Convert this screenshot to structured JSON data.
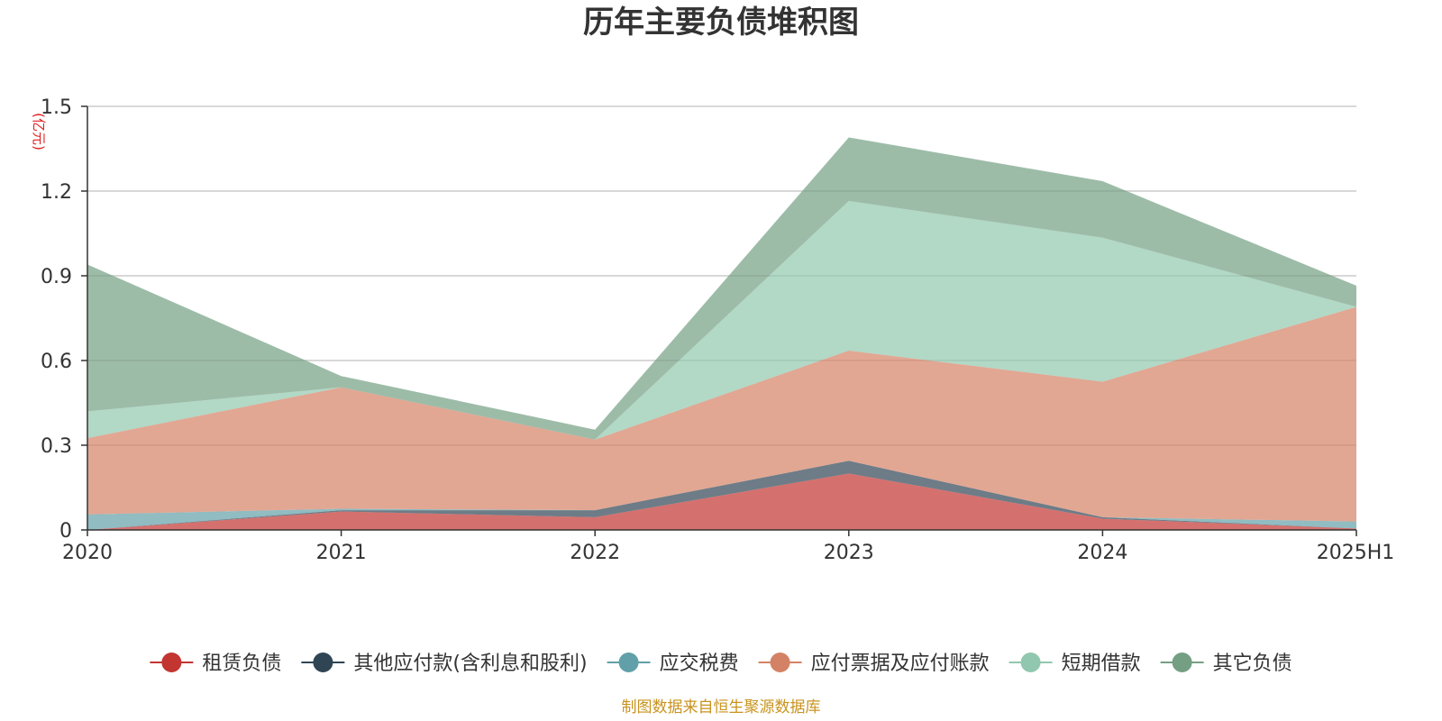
{
  "chart_data": {
    "type": "area",
    "stacked": true,
    "title": "历年主要负债堆积图",
    "unit_label": "(亿元)",
    "categories": [
      "2020",
      "2021",
      "2022",
      "2023",
      "2024",
      "2025H1"
    ],
    "y_ticks": [
      "0",
      "0.3",
      "0.6",
      "0.9",
      "1.2",
      "1.5"
    ],
    "ylim": [
      0,
      1.5
    ],
    "grid": true,
    "legend_position": "bottom",
    "series": [
      {
        "name": "租赁负债",
        "color": "#c23531",
        "values": [
          0.0,
          0.065,
          0.045,
          0.2,
          0.04,
          0.005
        ]
      },
      {
        "name": "其他应付款(含利息和股利)",
        "color": "#2f4554",
        "values": [
          0.0,
          0.005,
          0.025,
          0.045,
          0.005,
          0.0
        ]
      },
      {
        "name": "应交税费",
        "color": "#61a0a8",
        "values": [
          0.055,
          0.005,
          0.0,
          0.0,
          0.0,
          0.025
        ]
      },
      {
        "name": "应付票据及应付账款",
        "color": "#d48265",
        "values": [
          0.27,
          0.43,
          0.25,
          0.39,
          0.48,
          0.76
        ]
      },
      {
        "name": "短期借款",
        "color": "#91c7ae",
        "values": [
          0.095,
          0.0,
          0.0,
          0.53,
          0.51,
          0.0
        ]
      },
      {
        "name": "其它负债",
        "color": "#749f83",
        "values": [
          0.52,
          0.04,
          0.035,
          0.225,
          0.2,
          0.075
        ]
      }
    ]
  },
  "footer": {
    "source": "制图数据来自恒生聚源数据库"
  }
}
